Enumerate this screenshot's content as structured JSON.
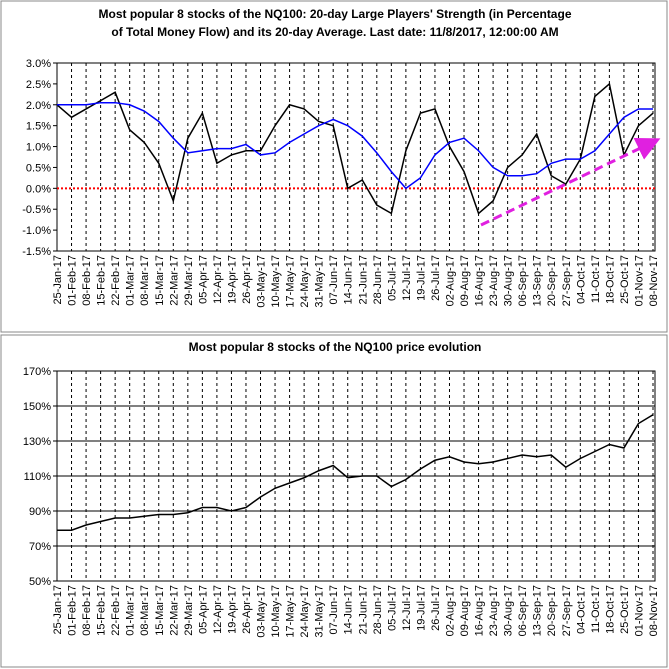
{
  "chart_data": [
    {
      "type": "line",
      "title": [
        "Most popular 8 stocks of the NQ100: 20-day Large Players' Strength (in Percentage",
        "of Total Money Flow) and its 20-day Average. Last date: 11/8/2017, 12:00:00 AM"
      ],
      "categories": [
        "25-Jan-17",
        "01-Feb-17",
        "08-Feb-17",
        "15-Feb-17",
        "22-Feb-17",
        "01-Mar-17",
        "08-Mar-17",
        "15-Mar-17",
        "22-Mar-17",
        "29-Mar-17",
        "05-Apr-17",
        "12-Apr-17",
        "19-Apr-17",
        "26-Apr-17",
        "03-May-17",
        "10-May-17",
        "17-May-17",
        "24-May-17",
        "31-May-17",
        "07-Jun-17",
        "14-Jun-17",
        "21-Jun-17",
        "28-Jun-17",
        "05-Jul-17",
        "12-Jul-17",
        "19-Jul-17",
        "26-Jul-17",
        "02-Aug-17",
        "09-Aug-17",
        "16-Aug-17",
        "23-Aug-17",
        "30-Aug-17",
        "06-Sep-17",
        "13-Sep-17",
        "20-Sep-17",
        "27-Sep-17",
        "04-Oct-17",
        "11-Oct-17",
        "18-Oct-17",
        "25-Oct-17",
        "01-Nov-17",
        "08-Nov-17"
      ],
      "series": [
        {
          "color": "#000000",
          "values": [
            2.0,
            1.7,
            1.9,
            2.1,
            2.3,
            1.4,
            1.1,
            0.6,
            -0.3,
            1.2,
            1.8,
            0.6,
            0.8,
            0.9,
            0.9,
            1.5,
            2.0,
            1.9,
            1.6,
            1.5,
            0.0,
            0.2,
            -0.4,
            -0.6,
            0.9,
            1.8,
            1.9,
            1.0,
            0.4,
            -0.6,
            -0.3,
            0.5,
            0.8,
            1.3,
            0.3,
            0.1,
            0.7,
            2.2,
            2.5,
            0.8,
            1.5,
            1.8
          ]
        },
        {
          "color": "#0000ff",
          "values": [
            2.0,
            2.0,
            2.0,
            2.05,
            2.05,
            2.0,
            1.85,
            1.6,
            1.2,
            0.85,
            0.9,
            0.95,
            0.95,
            1.05,
            0.8,
            0.85,
            1.1,
            1.3,
            1.5,
            1.65,
            1.5,
            1.25,
            0.85,
            0.4,
            0.0,
            0.25,
            0.8,
            1.1,
            1.2,
            0.9,
            0.5,
            0.3,
            0.3,
            0.35,
            0.6,
            0.7,
            0.7,
            0.9,
            1.3,
            1.7,
            1.9,
            1.9
          ]
        }
      ],
      "ylim": [
        -1.5,
        3.0
      ],
      "yticks": [
        {
          "value": 3.0,
          "label": "3.0%"
        },
        {
          "value": 2.5,
          "label": "2.5%"
        },
        {
          "value": 2.0,
          "label": "2.0%"
        },
        {
          "value": 1.5,
          "label": "1.5%"
        },
        {
          "value": 1.0,
          "label": "1.0%"
        },
        {
          "value": 0.5,
          "label": "0.5%"
        },
        {
          "value": 0,
          "label": "0.0%"
        },
        {
          "value": -0.5,
          "label": "-0.5%"
        },
        {
          "value": -1.0,
          "label": "-1.0%"
        },
        {
          "value": -1.5,
          "label": "-1.5%"
        }
      ],
      "xgrid": true,
      "ygrid": false,
      "zero_line_color": "#ff0000"
    },
    {
      "type": "line",
      "title": [
        "Most popular 8 stocks of the NQ100 price evolution"
      ],
      "categories": [
        "25-Jan-17",
        "01-Feb-17",
        "08-Feb-17",
        "15-Feb-17",
        "22-Feb-17",
        "01-Mar-17",
        "08-Mar-17",
        "15-Mar-17",
        "22-Mar-17",
        "29-Mar-17",
        "05-Apr-17",
        "12-Apr-17",
        "19-Apr-17",
        "26-Apr-17",
        "03-May-17",
        "10-May-17",
        "17-May-17",
        "24-May-17",
        "31-May-17",
        "07-Jun-17",
        "14-Jun-17",
        "21-Jun-17",
        "28-Jun-17",
        "05-Jul-17",
        "12-Jul-17",
        "19-Jul-17",
        "26-Jul-17",
        "02-Aug-17",
        "09-Aug-17",
        "16-Aug-17",
        "23-Aug-17",
        "30-Aug-17",
        "06-Sep-17",
        "13-Sep-17",
        "20-Sep-17",
        "27-Sep-17",
        "04-Oct-17",
        "11-Oct-17",
        "18-Oct-17",
        "25-Oct-17",
        "01-Nov-17",
        "08-Nov-17"
      ],
      "series": [
        {
          "color": "#000000",
          "values": [
            79,
            79,
            82,
            84,
            86,
            86,
            87,
            88,
            88,
            89,
            92,
            92,
            90,
            92,
            98,
            103,
            106,
            109,
            113,
            116,
            109,
            110,
            110,
            104,
            108,
            114,
            119,
            121,
            118,
            117,
            118,
            120,
            122,
            121,
            122,
            115,
            120,
            124,
            128,
            126,
            140,
            145
          ]
        }
      ],
      "ylim": [
        50,
        170
      ],
      "yticks": [
        {
          "value": 170,
          "label": "170%"
        },
        {
          "value": 150,
          "label": "150%"
        },
        {
          "value": 130,
          "label": "130%"
        },
        {
          "value": 110,
          "label": "110%"
        },
        {
          "value": 90,
          "label": "90%"
        },
        {
          "value": 70,
          "label": "70%"
        },
        {
          "value": 50,
          "label": "50%"
        }
      ],
      "xgrid": true,
      "ygrid": true
    }
  ]
}
